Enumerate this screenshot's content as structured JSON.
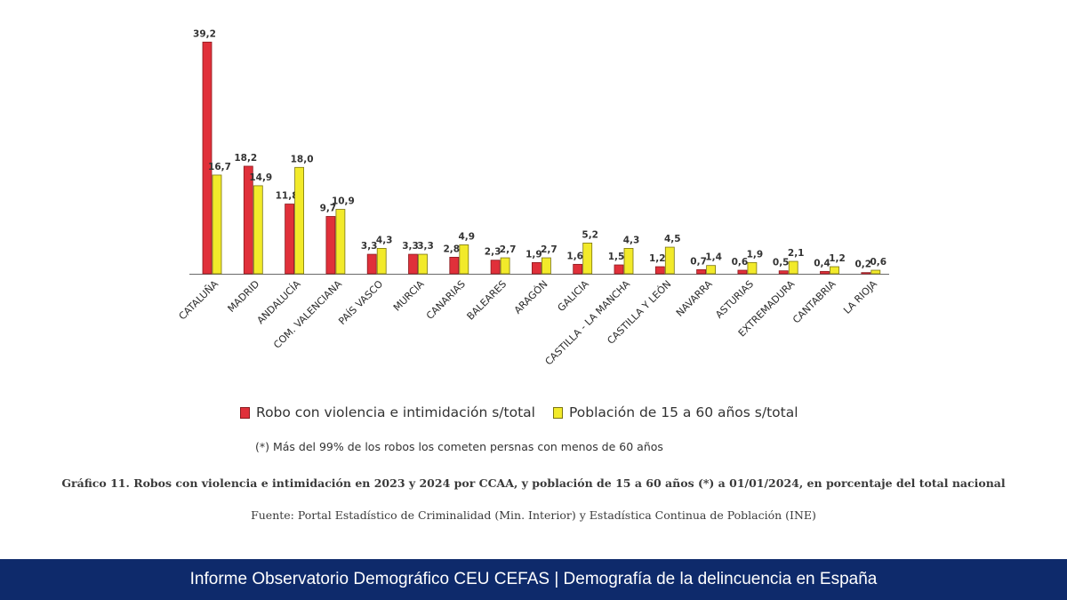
{
  "chart_data": {
    "type": "bar",
    "title": "",
    "xlabel": "",
    "ylabel": "",
    "ylim": [
      0,
      40
    ],
    "grid": false,
    "legend_position": "bottom",
    "categories": [
      "CATALUÑA",
      "MADRID",
      "ANDALUCÍA",
      "COM. VALENCIANA",
      "PAÍS VASCO",
      "MURCIA",
      "CANARIAS",
      "BALEARES",
      "ARAGÓN",
      "GALICIA",
      "CASTILLA - LA MANCHA",
      "CASTILLA Y LEÓN",
      "NAVARRA",
      "ASTURIAS",
      "EXTREMADURA",
      "CANTABRIA",
      "LA RIOJA"
    ],
    "series": [
      {
        "name": "Robo con violencia e intimidación s/total",
        "color": "#e0303a",
        "values": [
          39.2,
          18.2,
          11.8,
          9.7,
          3.3,
          3.3,
          2.8,
          2.3,
          1.9,
          1.6,
          1.5,
          1.2,
          0.7,
          0.6,
          0.5,
          0.4,
          0.2
        ],
        "labels": [
          "39,2",
          "18,2",
          "11,8",
          "9,7",
          "3,3",
          "3,3",
          "2,8",
          "2,3",
          "1,9",
          "1,6",
          "1,5",
          "1,2",
          "0,7",
          "0,6",
          "0,5",
          "0,4",
          "0,2"
        ]
      },
      {
        "name": "Población de 15 a 60 años s/total",
        "color": "#f2ea2a",
        "values": [
          16.7,
          14.9,
          18.0,
          10.9,
          4.3,
          3.3,
          4.9,
          2.7,
          2.7,
          5.2,
          4.3,
          4.5,
          1.4,
          1.9,
          2.1,
          1.2,
          0.6
        ],
        "labels": [
          "16,7",
          "14,9",
          "18,0",
          "10,9",
          "4,3",
          "3,3",
          "4,9",
          "2,7",
          "2,7",
          "5,2",
          "4,3",
          "4,5",
          "1,4",
          "1,9",
          "2,1",
          "1,2",
          "0,6"
        ]
      }
    ],
    "legend": [
      "Robo con violencia e intimidación s/total",
      "Población de 15 a 60 años s/total"
    ],
    "note": "(*) Más del 99% de los robos los cometen persnas con menos de 60 años"
  },
  "caption": "Gráfico 11. Robos con violencia e intimidación en 2023 y 2024 por CCAA, y población de 15 a 60 años (*) a 01/01/2024, en porcentaje del total nacional",
  "source": "Fuente: Portal Estadístico de Criminalidad (Min. Interior) y Estadística Continua de Población (INE)",
  "footer": {
    "text": "Informe Observatorio Demográfico CEU CEFAS | Demografía de la delincuencia en España",
    "background": "#0e2a6b"
  }
}
